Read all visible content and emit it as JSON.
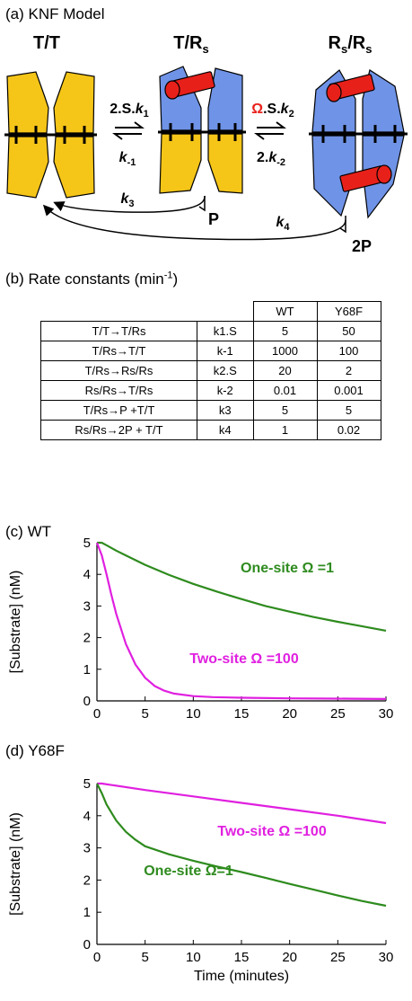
{
  "panel_a": {
    "label": "(a)",
    "title": "KNF Model",
    "species": {
      "tt": "T/T",
      "trs_base": "T/R",
      "rsrs_base": "R",
      "rsrs_mid": "/R",
      "sub_s": "s"
    },
    "arrows": {
      "forward1": "2.S.",
      "k1": "k",
      "k1_sub": "1",
      "reverse1_k": "k",
      "reverse1_sub": "-1",
      "omega": "Ω",
      "forward2": ".S.",
      "k2": "k",
      "k2_sub": "2",
      "reverse2_pre": "2.",
      "reverse2_k": "k",
      "reverse2_sub": "-2",
      "k3": "k",
      "k3_sub": "3",
      "k4": "k",
      "k4_sub": "4",
      "p": "P",
      "twop": "2P"
    },
    "colors": {
      "t_subunit": "#f5c518",
      "r_subunit": "#6f93e6",
      "substrate": "#e8201a",
      "omega": "#e8201a"
    }
  },
  "panel_b": {
    "label": "(b)",
    "title": "Rate constants (min",
    "title_sup": "-1",
    "title_end": ")",
    "columns": [
      "WT",
      "Y68F"
    ],
    "rows": [
      {
        "reaction": "T/T→T/Rs",
        "constant": "k1.S",
        "wt": "5",
        "y68f": "50"
      },
      {
        "reaction": "T/Rs→T/T",
        "constant": "k-1",
        "wt": "1000",
        "y68f": "100"
      },
      {
        "reaction": "T/Rs→Rs/Rs",
        "constant": "k2.S",
        "wt": "20",
        "y68f": "2"
      },
      {
        "reaction": "Rs/Rs→T/Rs",
        "constant": "k-2",
        "wt": "0.01",
        "y68f": "0.001"
      },
      {
        "reaction": "T/Rs→P +T/T",
        "constant": "k3",
        "wt": "5",
        "y68f": "5"
      },
      {
        "reaction": "Rs/Rs→2P + T/T",
        "constant": "k4",
        "wt": "1",
        "y68f": "0.02"
      }
    ]
  },
  "chart_data": [
    {
      "panel": "(c)",
      "title": "WT",
      "type": "line",
      "xlabel": "",
      "ylabel": "[Substrate] (nM)",
      "xlim": [
        0,
        30
      ],
      "ylim": [
        0,
        5
      ],
      "xticks": [
        0,
        5,
        10,
        15,
        20,
        25,
        30
      ],
      "yticks": [
        0,
        1,
        2,
        3,
        4,
        5
      ],
      "series": [
        {
          "name": "One-site Ω =1",
          "color": "#2e8b1e",
          "x": [
            0,
            0.5,
            1,
            2,
            3,
            5,
            7.5,
            10,
            12.5,
            15,
            17.5,
            20,
            22.5,
            25,
            27.5,
            30
          ],
          "y": [
            5.0,
            5.0,
            4.92,
            4.75,
            4.6,
            4.3,
            3.98,
            3.7,
            3.45,
            3.22,
            3.0,
            2.82,
            2.65,
            2.5,
            2.36,
            2.22
          ]
        },
        {
          "name": "Two-site Ω =100",
          "color": "#e020e0",
          "x": [
            0,
            0.5,
            1,
            1.5,
            2,
            3,
            4,
            5,
            6,
            7,
            8,
            10,
            12,
            15,
            20,
            25,
            30
          ],
          "y": [
            5.0,
            4.6,
            4.0,
            3.35,
            2.75,
            1.8,
            1.15,
            0.73,
            0.47,
            0.32,
            0.23,
            0.15,
            0.12,
            0.1,
            0.08,
            0.07,
            0.06
          ]
        }
      ]
    },
    {
      "panel": "(d)",
      "title": "Y68F",
      "type": "line",
      "xlabel": "Time (minutes)",
      "ylabel": "[Substrate] (nM)",
      "xlim": [
        0,
        30
      ],
      "ylim": [
        0,
        5
      ],
      "xticks": [
        0,
        5,
        10,
        15,
        20,
        25,
        30
      ],
      "yticks": [
        0,
        1,
        2,
        3,
        4,
        5
      ],
      "series": [
        {
          "name": "Two-site Ω =100",
          "color": "#e020e0",
          "x": [
            0,
            0.5,
            5,
            10,
            15,
            20,
            25,
            30
          ],
          "y": [
            5.0,
            5.0,
            4.8,
            4.6,
            4.4,
            4.2,
            4.0,
            3.77
          ]
        },
        {
          "name": "One-site Ω=1",
          "color": "#2e8b1e",
          "x": [
            0,
            0.5,
            1,
            2,
            3,
            4,
            5,
            7.5,
            10,
            12.5,
            15,
            17.5,
            20,
            22.5,
            25,
            27.5,
            30
          ],
          "y": [
            5.0,
            4.7,
            4.35,
            3.85,
            3.5,
            3.25,
            3.05,
            2.8,
            2.6,
            2.42,
            2.25,
            2.07,
            1.88,
            1.7,
            1.52,
            1.35,
            1.2
          ]
        }
      ]
    }
  ]
}
